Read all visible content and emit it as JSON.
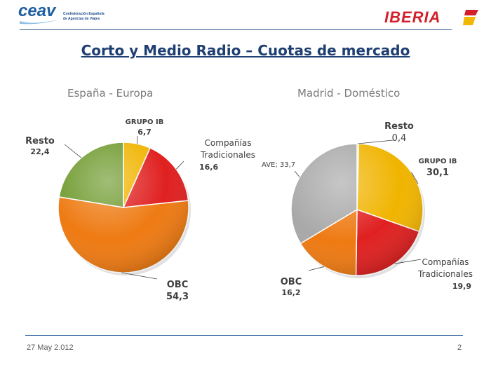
{
  "header": {
    "left_logo": "ceav",
    "left_logo_sub1": "Confederación Española",
    "left_logo_sub2": "de Agencias de Viajes",
    "right_logo": "IBERIA"
  },
  "slide_title": "Corto y Medio Radio – Cuotas de mercado",
  "footer": {
    "date": "27 May 2.012",
    "page": "2"
  },
  "colors": {
    "grupo_ib": "#f0b400",
    "tradicionales": "#e02020",
    "obc": "#ee7a12",
    "resto_1": "#6f9a2e",
    "ave": "#a8a8a8",
    "resto_2": "#f2c300"
  },
  "chart_data": [
    {
      "type": "pie",
      "title": "España - Europa",
      "slices": [
        {
          "name": "GRUPO IB",
          "value": 6.7,
          "label_value": "6,7"
        },
        {
          "name_lines": [
            "Compañías",
            "Tradicionales"
          ],
          "value": 16.6,
          "label_value": "16,6"
        },
        {
          "name": "OBC",
          "value": 54.3,
          "label_value": "54,3"
        },
        {
          "name": "Resto",
          "value": 22.4,
          "label_value": "22,4"
        }
      ]
    },
    {
      "type": "pie",
      "title": "Madrid - Doméstico",
      "slices": [
        {
          "name": "Resto",
          "value": 0.4,
          "label_value": "0,4"
        },
        {
          "name": "GRUPO IB",
          "value": 30.1,
          "label_value": "30,1"
        },
        {
          "name_lines": [
            "Compañías",
            "Tradicionales"
          ],
          "value": 19.9,
          "label_value": "19,9"
        },
        {
          "name": "OBC",
          "value": 16.2,
          "label_value": "16,2"
        },
        {
          "name": "AVE",
          "value": 33.7,
          "label_value": "AVE; 33,7"
        }
      ]
    }
  ]
}
